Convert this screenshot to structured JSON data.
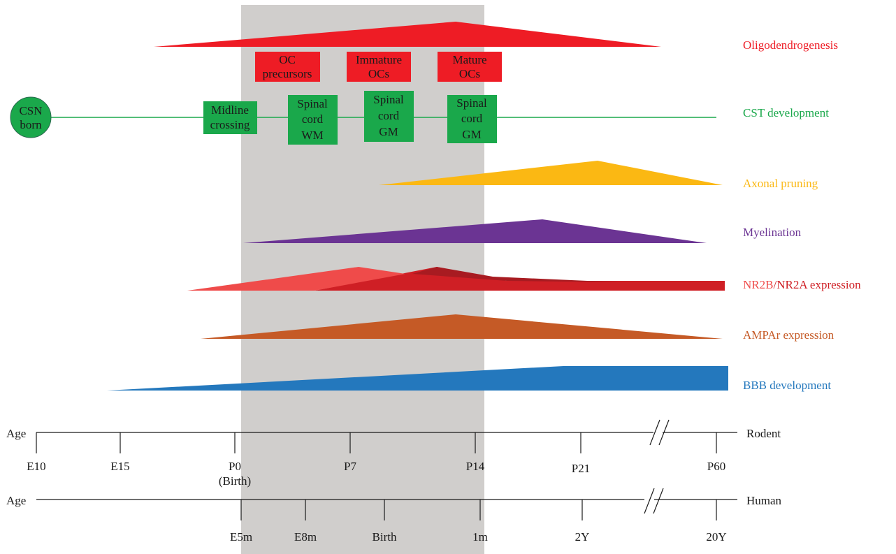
{
  "colors": {
    "red": "#ee1c25",
    "green": "#1aa84b",
    "yellow": "#fbb813",
    "purple": "#6b3493",
    "nr2b": "#ef4b4a",
    "nr2a": "#cf1f25",
    "nr2a_dark": "#a81b21",
    "orange": "#c55a26",
    "blue": "#2478bd",
    "gray_band": "#d0cecc",
    "axis": "#1a1a1a"
  },
  "processes": {
    "oligodendrogenesis": "Oligodendrogenesis",
    "cst": "CST development",
    "pruning": "Axonal pruning",
    "myelination": "Myelination",
    "nr2b": "NR2B",
    "nr2a_expression": "NR2A expression",
    "slash": "/",
    "ampar": "AMPAr expression",
    "bbb": "BBB development"
  },
  "oc_stages": [
    [
      "OC",
      "precursors"
    ],
    [
      "Immature",
      "OCs"
    ],
    [
      "Mature",
      "OCs"
    ]
  ],
  "cst_stages": {
    "origin": [
      "CSN",
      "born"
    ],
    "midline": [
      "Midline",
      "crossing"
    ],
    "spinal_wm": [
      "Spinal",
      "cord",
      "WM"
    ],
    "spinal_gm_1": [
      "Spinal",
      "cord",
      "GM"
    ],
    "spinal_gm_2": [
      "Spinal",
      "cord",
      "GM"
    ]
  },
  "rodent_axis": {
    "left_label": "Age",
    "name": "Rodent",
    "ticks": [
      "E10",
      "E15",
      "P0",
      "P7",
      "P14",
      "P21",
      "P60"
    ],
    "birth_note": "(Birth)"
  },
  "human_axis": {
    "left_label": "Age",
    "name": "Human",
    "ticks": [
      "E5m",
      "E8m",
      "Birth",
      "1m",
      "2Y",
      "20Y"
    ]
  }
}
